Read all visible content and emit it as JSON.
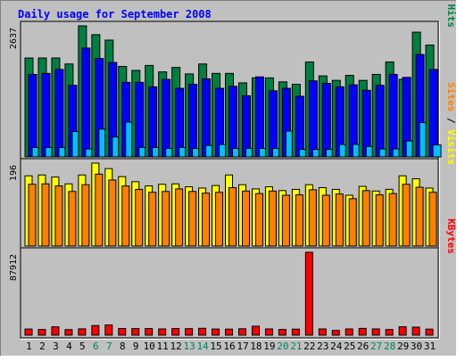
{
  "chart_data": {
    "type": "bar",
    "title": "Daily usage for September 2008",
    "categories": [
      "1",
      "2",
      "3",
      "4",
      "5",
      "6",
      "7",
      "8",
      "9",
      "10",
      "11",
      "12",
      "13",
      "14",
      "15",
      "16",
      "17",
      "18",
      "19",
      "20",
      "21",
      "22",
      "23",
      "24",
      "25",
      "26",
      "27",
      "28",
      "29",
      "30",
      "31"
    ],
    "weekend_days": [
      "6",
      "7",
      "13",
      "14",
      "20",
      "21",
      "27",
      "28"
    ],
    "colors": {
      "background": "#C0C0C0",
      "frame": "#000000",
      "title": "#0000FF",
      "hits": "#008040",
      "files": "#0000FF",
      "pages": "#00C0FF",
      "visits": "#FFFF00",
      "sites": "#FF8000",
      "kbytes": "#FF0000",
      "weekend_label": "#00805C",
      "weekday_label": "#000000"
    },
    "panels": [
      {
        "id": "hits_files_pages",
        "max_label": "2637",
        "ylim": [
          0,
          2637
        ],
        "legend": [
          {
            "text": "Pages",
            "color": "#00C0FF"
          },
          {
            "text": " / ",
            "color": "#000000"
          },
          {
            "text": "Files",
            "color": "#0000FF"
          },
          {
            "text": " / ",
            "color": "#000000"
          },
          {
            "text": "Hits",
            "color": "#008040"
          }
        ],
        "series": [
          {
            "name": "Hits",
            "color": "#008040",
            "values": [
              1990,
              1990,
              1990,
              1870,
              2637,
              2460,
              2350,
              1820,
              1740,
              1840,
              1710,
              1800,
              1670,
              1870,
              1680,
              1680,
              1490,
              1590,
              1590,
              1510,
              1460,
              1910,
              1630,
              1540,
              1640,
              1540,
              1660,
              1910,
              1560,
              2510,
              2250
            ]
          },
          {
            "name": "Files",
            "color": "#0000FF",
            "values": [
              1660,
              1680,
              1760,
              1440,
              2190,
              1980,
              1900,
              1500,
              1500,
              1410,
              1560,
              1380,
              1460,
              1570,
              1380,
              1420,
              1230,
              1610,
              1330,
              1380,
              1220,
              1530,
              1480,
              1410,
              1450,
              1340,
              1440,
              1660,
              1600,
              2060,
              1760
            ]
          },
          {
            "name": "Pages",
            "color": "#00C0FF",
            "values": [
              190,
              190,
              190,
              510,
              160,
              560,
              400,
              700,
              190,
              190,
              170,
              190,
              170,
              230,
              250,
              170,
              170,
              170,
              170,
              520,
              150,
              150,
              150,
              250,
              250,
              210,
              160,
              160,
              320,
              690,
              240
            ]
          }
        ]
      },
      {
        "id": "visits_sites",
        "max_label": "196",
        "ylim": [
          0,
          196
        ],
        "legend": [
          {
            "text": "Sites",
            "color": "#FF8000"
          },
          {
            "text": " / ",
            "color": "#000000"
          },
          {
            "text": "Visits",
            "color": "#FFFF00"
          }
        ],
        "series": [
          {
            "name": "Visits",
            "color": "#FFFF00",
            "values": [
              166,
              168,
              163,
              147,
              168,
              196,
              183,
              164,
              152,
              142,
              146,
              147,
              140,
              137,
              143,
              168,
              145,
              135,
              140,
              131,
              134,
              145,
              138,
              134,
              120,
              141,
              130,
              134,
              166,
              159,
              137
            ]
          },
          {
            "name": "Sites",
            "color": "#FF8000",
            "values": [
              146,
              147,
              142,
              129,
              145,
              170,
              156,
              142,
              134,
              127,
              129,
              135,
              129,
              125,
              127,
              138,
              130,
              124,
              130,
              120,
              121,
              133,
              120,
              123,
              112,
              131,
              121,
              124,
              146,
              139,
              127
            ]
          }
        ]
      },
      {
        "id": "kbytes",
        "max_label": "87912",
        "ylim": [
          0,
          87912
        ],
        "legend": [
          {
            "text": "KBytes",
            "color": "#FF0000"
          }
        ],
        "series": [
          {
            "name": "KBytes",
            "color": "#FF0000",
            "values": [
              6500,
              6000,
              8800,
              5900,
              6700,
              10200,
              10800,
              7000,
              7000,
              7000,
              6600,
              7000,
              6900,
              7300,
              6500,
              6400,
              6800,
              9500,
              6600,
              6000,
              6400,
              87912,
              6600,
              5000,
              6600,
              7200,
              6600,
              6000,
              8900,
              8500,
              6400
            ]
          }
        ]
      }
    ]
  }
}
